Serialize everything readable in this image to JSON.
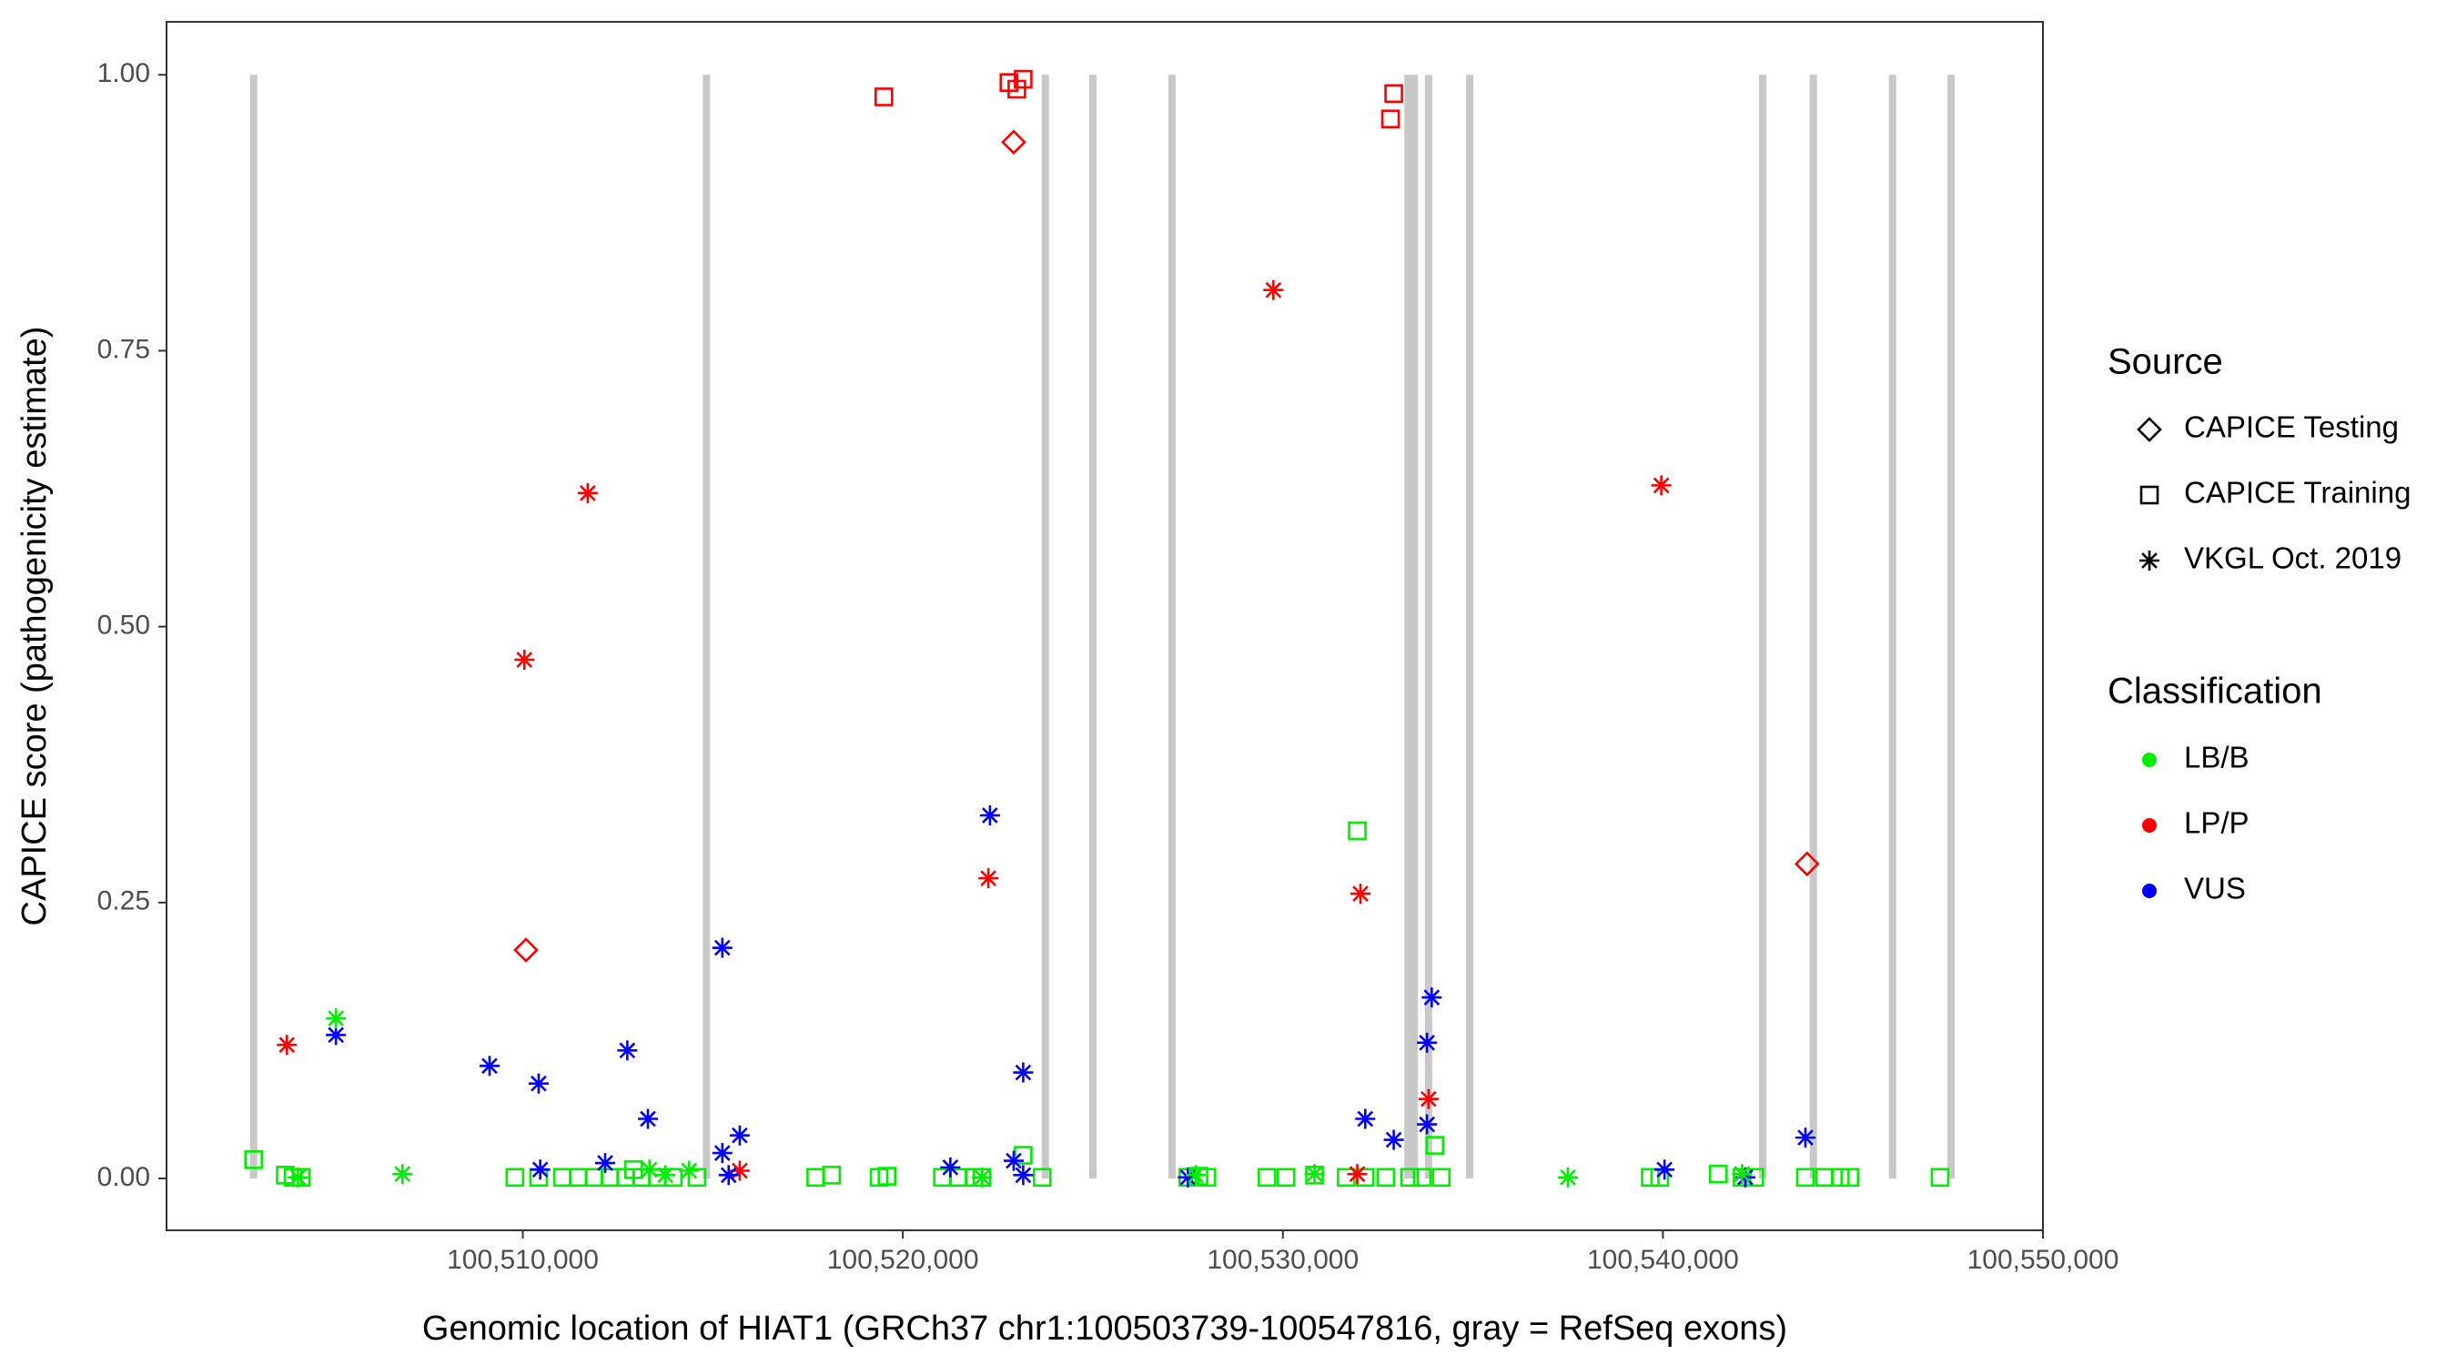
{
  "chart_data": {
    "type": "scatter",
    "x_label": "Genomic location of HIAT1 (GRCh37 chr1:100503739-100547816, gray = RefSeq exons)",
    "y_label": "CAPICE score (pathogenicity estimate)",
    "xlim": [
      100500625,
      100550000
    ],
    "ylim": [
      -0.047,
      1.048
    ],
    "xticks": [
      {
        "value": 100510000,
        "label": "100,510,000"
      },
      {
        "value": 100520000,
        "label": "100,520,000"
      },
      {
        "value": 100530000,
        "label": "100,530,000"
      },
      {
        "value": 100540000,
        "label": "100,540,000"
      },
      {
        "value": 100550000,
        "label": "100,550,000"
      }
    ],
    "yticks": [
      {
        "value": 0,
        "label": "0.00"
      },
      {
        "value": 0.25,
        "label": "0.25"
      },
      {
        "value": 0.5,
        "label": "0.50"
      },
      {
        "value": 0.75,
        "label": "0.75"
      },
      {
        "value": 1,
        "label": "1.00"
      }
    ],
    "grid": false,
    "exon_color": "#c8c8c8",
    "exons": [
      100502917,
      100514833,
      100523750,
      100525000,
      100527083,
      100533292,
      100533458,
      100533833,
      100534917,
      100542625,
      100543958,
      100546042,
      100547583
    ],
    "shape_legend": {
      "title": "Source",
      "items": [
        {
          "label": "CAPICE Testing",
          "shape": "diamond"
        },
        {
          "label": "CAPICE Training",
          "shape": "square"
        },
        {
          "label": "VKGL Oct. 2019",
          "shape": "asterisk"
        }
      ]
    },
    "color_legend": {
      "title": "Classification",
      "items": [
        {
          "label": "LB/B",
          "color": "#00ee00"
        },
        {
          "label": "LP/P",
          "color": "#ff0000"
        },
        {
          "label": "VUS",
          "color": "#0000ff"
        }
      ]
    },
    "series": [
      {
        "source": "CAPICE Testing",
        "classification": "LP/P",
        "x": [
          100510083,
          100522917,
          100543792
        ],
        "y": [
          0.207,
          0.939,
          0.285
        ]
      },
      {
        "source": "CAPICE Training",
        "classification": "LP/P",
        "x": [
          100519500,
          100522792,
          100523000,
          100523167,
          100532917,
          100532833
        ],
        "y": [
          0.98,
          0.993,
          0.987,
          0.996,
          0.983,
          0.96
        ]
      },
      {
        "source": "CAPICE Training",
        "classification": "LB/B",
        "x": [
          100502917,
          100531958,
          100523167,
          100534000,
          100503750,
          100503958,
          100504167,
          100509792,
          100510417,
          100511042,
          100511458,
          100511875,
          100512292,
          100512708,
          100513125,
          100513542,
          100513958,
          100514583,
          100517708,
          100518125,
          100519375,
          100519583,
          100521042,
          100521458,
          100521875,
          100522083,
          100523667,
          100527500,
          100527792,
          100528000,
          100529583,
          100530083,
          100530833,
          100531667,
          100532167,
          100532708,
          100533333,
          100533667,
          100534167,
          100539667,
          100539917,
          100541458,
          100542083,
          100542417,
          100543750,
          100544250,
          100544667,
          100544917,
          100547292,
          100512917
        ],
        "y": [
          0.017,
          0.315,
          0.021,
          0.03,
          0.003,
          0.001,
          0.001,
          0.001,
          0.001,
          0.001,
          0.001,
          0.001,
          0.001,
          0.001,
          0.001,
          0.001,
          0.001,
          0.001,
          0.001,
          0.003,
          0.001,
          0.002,
          0.001,
          0.001,
          0.001,
          0.001,
          0.001,
          0.001,
          0.002,
          0.001,
          0.001,
          0.001,
          0.003,
          0.001,
          0.001,
          0.001,
          0.001,
          0.001,
          0.001,
          0.001,
          0.001,
          0.004,
          0.001,
          0.001,
          0.001,
          0.001,
          0.001,
          0.001,
          0.001,
          0.008
        ]
      },
      {
        "source": "VKGL Oct. 2019",
        "classification": "LP/P",
        "x": [
          100503792,
          100510042,
          100511708,
          100522250,
          100529750,
          100532042,
          100533833,
          100539958,
          100515708,
          100531958
        ],
        "y": [
          0.121,
          0.47,
          0.621,
          0.272,
          0.805,
          0.258,
          0.072,
          0.628,
          0.007,
          0.004
        ]
      },
      {
        "source": "VKGL Oct. 2019",
        "classification": "VUS",
        "x": [
          100505083,
          100509125,
          100510417,
          100512750,
          100513292,
          100515250,
          100515708,
          100522292,
          100523167,
          100515250,
          100510458,
          100512167,
          100521250,
          100522917,
          100532167,
          100532917,
          100533792,
          100533917,
          100533792,
          100543750,
          100540042,
          100515417,
          100527500,
          100542167,
          100523167
        ],
        "y": [
          0.13,
          0.102,
          0.086,
          0.116,
          0.054,
          0.209,
          0.039,
          0.329,
          0.096,
          0.023,
          0.008,
          0.014,
          0.01,
          0.016,
          0.054,
          0.035,
          0.123,
          0.164,
          0.049,
          0.037,
          0.008,
          0.003,
          0.001,
          0.001,
          0.003
        ]
      },
      {
        "source": "VKGL Oct. 2019",
        "classification": "LB/B",
        "x": [
          100505083,
          100506833,
          100504083,
          100514375,
          100513333,
          100537500,
          100542083,
          100530833,
          100527708,
          100522083,
          100513750
        ],
        "y": [
          0.145,
          0.004,
          0.001,
          0.007,
          0.008,
          0.001,
          0.004,
          0.004,
          0.003,
          0.001,
          0.003
        ]
      }
    ]
  }
}
